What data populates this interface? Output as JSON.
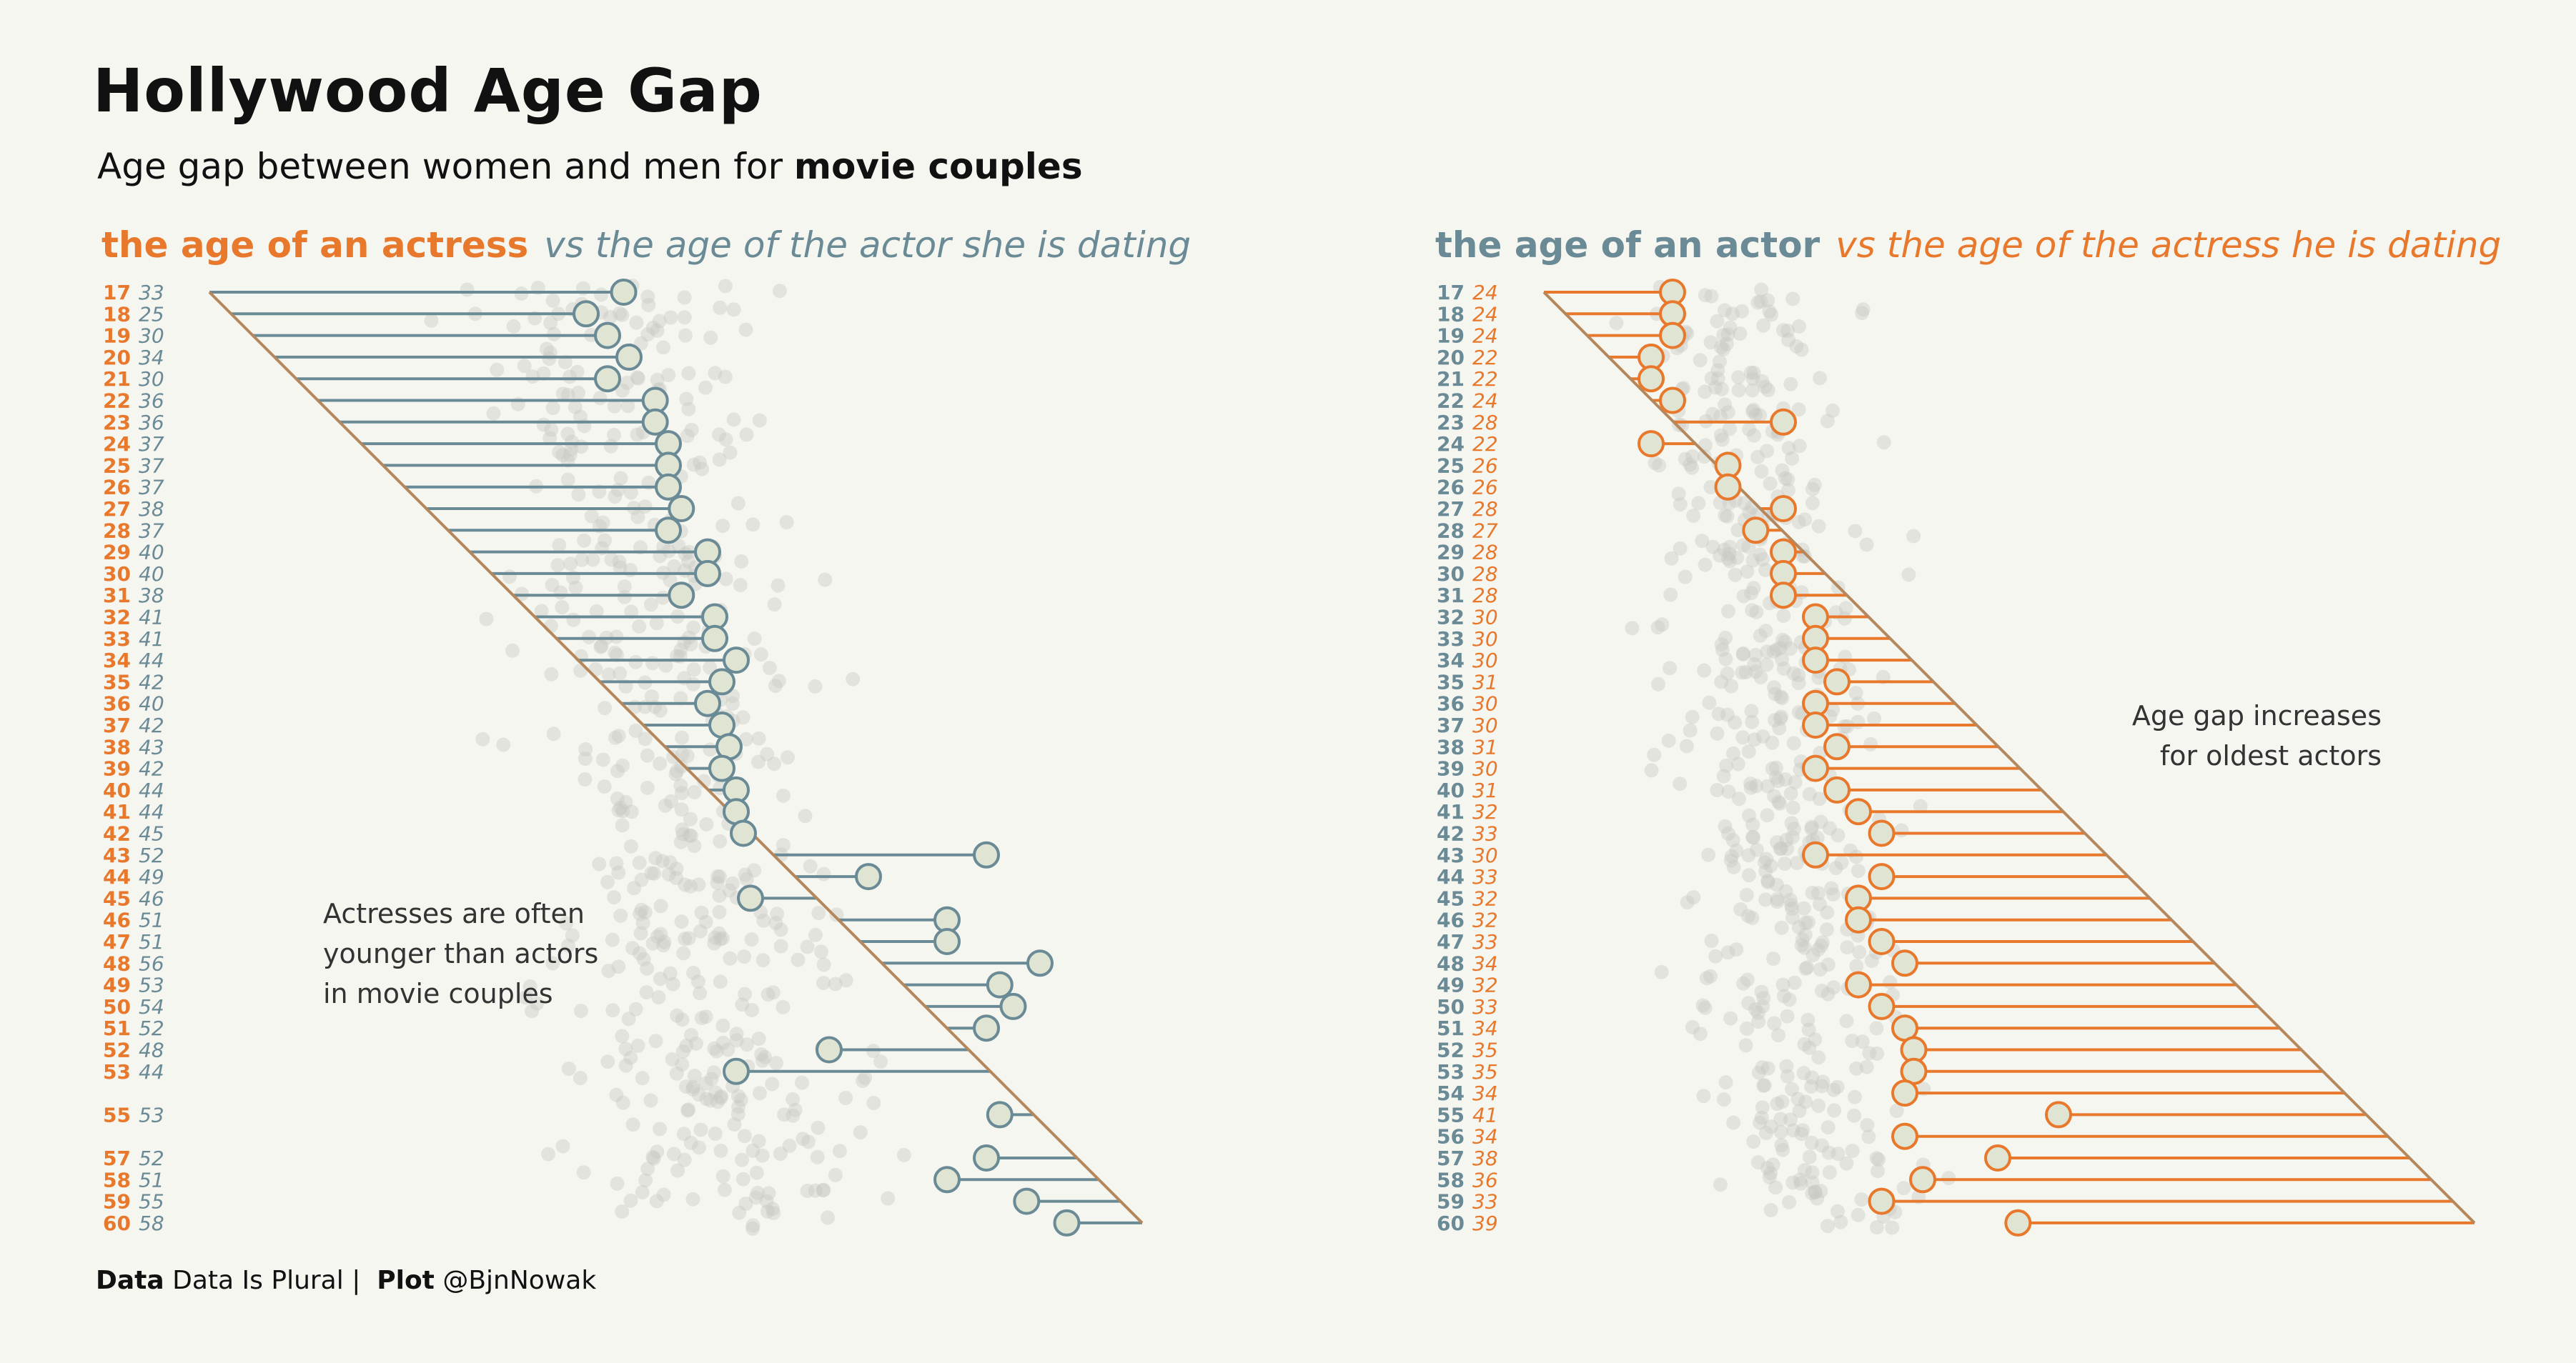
{
  "title": "Hollywood  Age Gap",
  "subtitle": {
    "prefix": "Age gap between  women and men  for ",
    "bold": "movie couples"
  },
  "colors": {
    "actress": "#e7782c",
    "actor": "#6a8a96",
    "diagonal": "#b5875c",
    "dot_fill": "#dfe5d2",
    "background_dots": "#c9c9c3",
    "bg": "#f6f6f1"
  },
  "caption": {
    "data_label": "Data",
    "data_source": "Data Is Plural |",
    "plot_label": "Plot",
    "plot_author": "@BjnNowak"
  },
  "chart_data": [
    {
      "type": "lollipop",
      "title_bold": "the age of an actress",
      "title_italic": "vs the age of the actor she is dating",
      "annotation": [
        "Actresses are often",
        "younger than actors",
        "in movie couples"
      ],
      "row_ages": [
        17,
        18,
        19,
        20,
        21,
        22,
        23,
        24,
        25,
        26,
        27,
        28,
        29,
        30,
        31,
        32,
        33,
        34,
        35,
        36,
        37,
        38,
        39,
        40,
        41,
        42,
        43,
        44,
        45,
        46,
        47,
        48,
        49,
        50,
        51,
        52,
        53,
        55,
        57,
        58,
        59,
        60
      ],
      "partner_ages": [
        33,
        25,
        30,
        34,
        30,
        36,
        36,
        37,
        37,
        37,
        38,
        37,
        40,
        40,
        38,
        41,
        41,
        44,
        42,
        40,
        42,
        43,
        42,
        44,
        44,
        45,
        52,
        49,
        46,
        51,
        51,
        56,
        53,
        54,
        52,
        48,
        44,
        53,
        52,
        51,
        55,
        58
      ]
    },
    {
      "type": "lollipop",
      "title_bold": "the age of an actor",
      "title_italic": "vs the age of the actress he is dating",
      "annotation": [
        "Age gap increases",
        "for oldest actors"
      ],
      "row_ages": [
        17,
        18,
        19,
        20,
        21,
        22,
        23,
        24,
        25,
        26,
        27,
        28,
        29,
        30,
        31,
        32,
        33,
        34,
        35,
        36,
        37,
        38,
        39,
        40,
        41,
        42,
        43,
        44,
        45,
        46,
        47,
        48,
        49,
        50,
        51,
        52,
        53,
        54,
        55,
        56,
        57,
        58,
        59,
        60
      ],
      "partner_ages": [
        24,
        24,
        24,
        22,
        22,
        24,
        28,
        22,
        26,
        26,
        28,
        27,
        28,
        28,
        28,
        30,
        30,
        30,
        31,
        30,
        30,
        31,
        30,
        31,
        32,
        33,
        30,
        33,
        32,
        32,
        33,
        34,
        32,
        33,
        34,
        35,
        35,
        34,
        41,
        34,
        38,
        36,
        33,
        39
      ]
    }
  ]
}
